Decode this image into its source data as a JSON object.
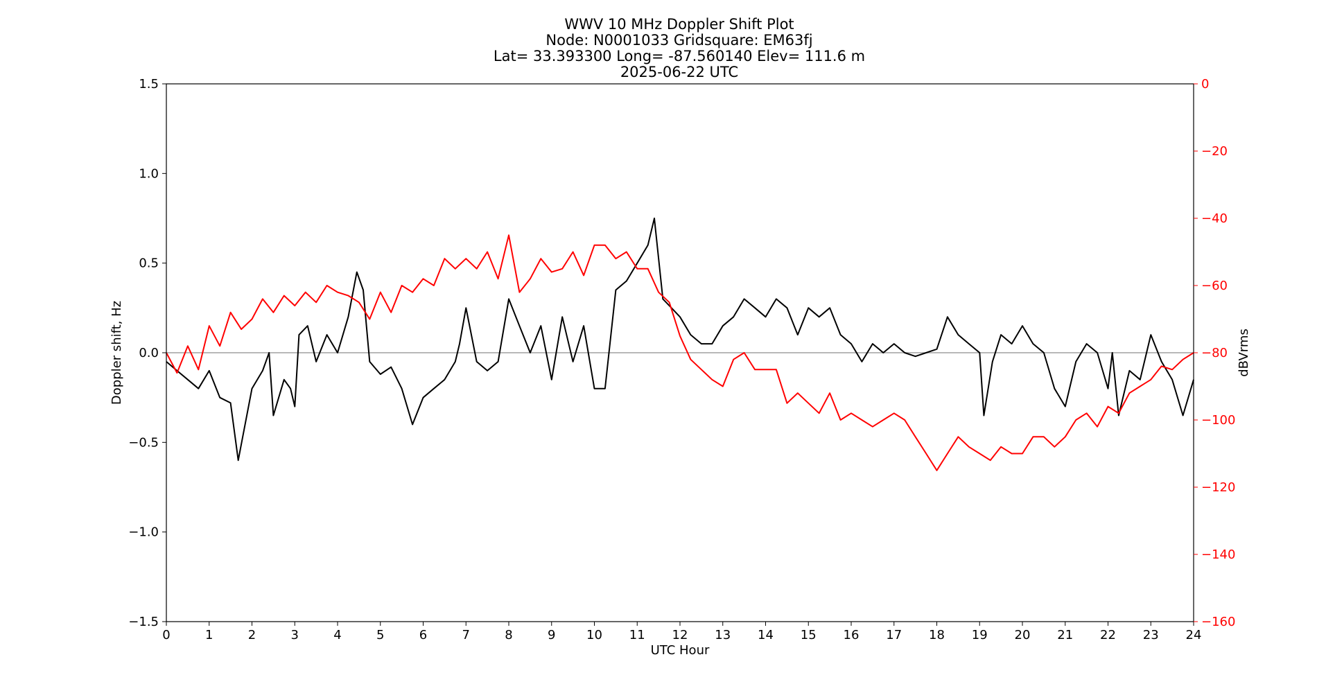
{
  "chart_data": {
    "type": "line",
    "title_lines": [
      "WWV 10 MHz Doppler Shift Plot",
      "Node:  N0001033     Gridsquare:  EM63fj",
      "Lat= 33.393300    Long= -87.560140    Elev= 111.6 m",
      "2025-06-22  UTC"
    ],
    "xlabel": "UTC Hour",
    "ylabel_left": "Doppler shift, Hz",
    "ylabel_right": "dBVrms",
    "xlim": [
      0,
      24
    ],
    "ylim_left": [
      -1.5,
      1.5
    ],
    "ylim_right": [
      -160,
      0
    ],
    "xticks": [
      "0",
      "1",
      "2",
      "3",
      "4",
      "5",
      "6",
      "7",
      "8",
      "9",
      "10",
      "11",
      "12",
      "13",
      "14",
      "15",
      "16",
      "17",
      "18",
      "19",
      "20",
      "21",
      "22",
      "23",
      "24"
    ],
    "yticks_left": [
      "1.5",
      "1.0",
      "0.5",
      "0.0",
      "−0.5",
      "−1.0",
      "−1.5"
    ],
    "yticks_left_values": [
      1.5,
      1.0,
      0.5,
      0.0,
      -0.5,
      -1.0,
      -1.5
    ],
    "yticks_right": [
      "0",
      "−20",
      "−40",
      "−60",
      "−80",
      "−100",
      "−120",
      "−140",
      "−160"
    ],
    "yticks_right_values": [
      0,
      -20,
      -40,
      -60,
      -80,
      -100,
      -120,
      -140,
      -160
    ],
    "reference_line_y": 0.0,
    "series": [
      {
        "axis": "left",
        "color": "#000000",
        "x": [
          0,
          0.25,
          0.5,
          0.75,
          1,
          1.25,
          1.5,
          1.68,
          1.8,
          2,
          2.25,
          2.4,
          2.5,
          2.75,
          2.9,
          3,
          3.1,
          3.3,
          3.5,
          3.75,
          4,
          4.25,
          4.45,
          4.6,
          4.75,
          5,
          5.25,
          5.5,
          5.75,
          6,
          6.25,
          6.5,
          6.75,
          6.85,
          7,
          7.25,
          7.5,
          7.75,
          8,
          8.25,
          8.5,
          8.75,
          9,
          9.25,
          9.5,
          9.75,
          10,
          10.25,
          10.5,
          10.75,
          11,
          11.25,
          11.4,
          11.6,
          11.8,
          12,
          12.25,
          12.5,
          12.75,
          13,
          13.25,
          13.5,
          13.75,
          14,
          14.25,
          14.5,
          14.75,
          15,
          15.25,
          15.5,
          15.75,
          16,
          16.25,
          16.5,
          16.75,
          17,
          17.25,
          17.5,
          17.75,
          18,
          18.25,
          18.5,
          18.75,
          19,
          19.1,
          19.3,
          19.5,
          19.75,
          20,
          20.25,
          20.5,
          20.75,
          21,
          21.25,
          21.5,
          21.75,
          22,
          22.1,
          22.25,
          22.5,
          22.75,
          23,
          23.25,
          23.5,
          23.75,
          24
        ],
        "y": [
          -0.05,
          -0.1,
          -0.15,
          -0.2,
          -0.1,
          -0.25,
          -0.28,
          -0.6,
          -0.45,
          -0.2,
          -0.1,
          0.0,
          -0.35,
          -0.15,
          -0.2,
          -0.3,
          0.1,
          0.15,
          -0.05,
          0.1,
          0.0,
          0.2,
          0.45,
          0.35,
          -0.05,
          -0.12,
          -0.08,
          -0.2,
          -0.4,
          -0.25,
          -0.2,
          -0.15,
          -0.05,
          0.05,
          0.25,
          -0.05,
          -0.1,
          -0.05,
          0.3,
          0.15,
          0.0,
          0.15,
          -0.15,
          0.2,
          -0.05,
          0.15,
          -0.2,
          -0.2,
          0.35,
          0.4,
          0.5,
          0.6,
          0.75,
          0.3,
          0.25,
          0.2,
          0.1,
          0.05,
          0.05,
          0.15,
          0.2,
          0.3,
          0.25,
          0.2,
          0.3,
          0.25,
          0.1,
          0.25,
          0.2,
          0.25,
          0.1,
          0.05,
          -0.05,
          0.05,
          0.0,
          0.05,
          0.0,
          -0.02,
          0.0,
          0.02,
          0.2,
          0.1,
          0.05,
          0.0,
          -0.35,
          -0.05,
          0.1,
          0.05,
          0.15,
          0.05,
          0.0,
          -0.2,
          -0.3,
          -0.05,
          0.05,
          0.0,
          -0.2,
          0.0,
          -0.35,
          -0.1,
          -0.15,
          0.1,
          -0.05,
          -0.15,
          -0.35,
          -0.15
        ]
      },
      {
        "axis": "right",
        "color": "#ff0000",
        "x": [
          0,
          0.25,
          0.5,
          0.75,
          1,
          1.25,
          1.5,
          1.75,
          2,
          2.25,
          2.5,
          2.75,
          3,
          3.25,
          3.5,
          3.75,
          4,
          4.25,
          4.5,
          4.75,
          5,
          5.25,
          5.5,
          5.75,
          6,
          6.25,
          6.5,
          6.75,
          7,
          7.25,
          7.5,
          7.75,
          8,
          8.25,
          8.5,
          8.75,
          9,
          9.25,
          9.5,
          9.75,
          10,
          10.25,
          10.5,
          10.75,
          11,
          11.25,
          11.5,
          11.75,
          12,
          12.25,
          12.5,
          12.75,
          13,
          13.25,
          13.5,
          13.75,
          14,
          14.25,
          14.5,
          14.75,
          15,
          15.25,
          15.5,
          15.75,
          16,
          16.25,
          16.5,
          16.75,
          17,
          17.25,
          17.5,
          17.75,
          18,
          18.25,
          18.5,
          18.75,
          19,
          19.25,
          19.5,
          19.75,
          20,
          20.25,
          20.5,
          20.75,
          21,
          21.25,
          21.5,
          21.75,
          22,
          22.25,
          22.5,
          22.75,
          23,
          23.25,
          23.5,
          23.75,
          24
        ],
        "y": [
          -80,
          -86,
          -78,
          -85,
          -72,
          -78,
          -68,
          -73,
          -70,
          -64,
          -68,
          -63,
          -66,
          -62,
          -65,
          -60,
          -62,
          -63,
          -65,
          -70,
          -62,
          -68,
          -60,
          -62,
          -58,
          -60,
          -52,
          -55,
          -52,
          -55,
          -50,
          -58,
          -45,
          -62,
          -58,
          -52,
          -56,
          -55,
          -50,
          -57,
          -48,
          -48,
          -52,
          -50,
          -55,
          -55,
          -62,
          -65,
          -75,
          -82,
          -85,
          -88,
          -90,
          -82,
          -80,
          -85,
          -85,
          -85,
          -95,
          -92,
          -95,
          -98,
          -92,
          -100,
          -98,
          -100,
          -102,
          -100,
          -98,
          -100,
          -105,
          -110,
          -115,
          -110,
          -105,
          -108,
          -110,
          -112,
          -108,
          -110,
          -110,
          -105,
          -105,
          -108,
          -105,
          -100,
          -98,
          -102,
          -96,
          -98,
          -92,
          -90,
          -88,
          -84,
          -85,
          -82,
          -80
        ]
      }
    ]
  }
}
